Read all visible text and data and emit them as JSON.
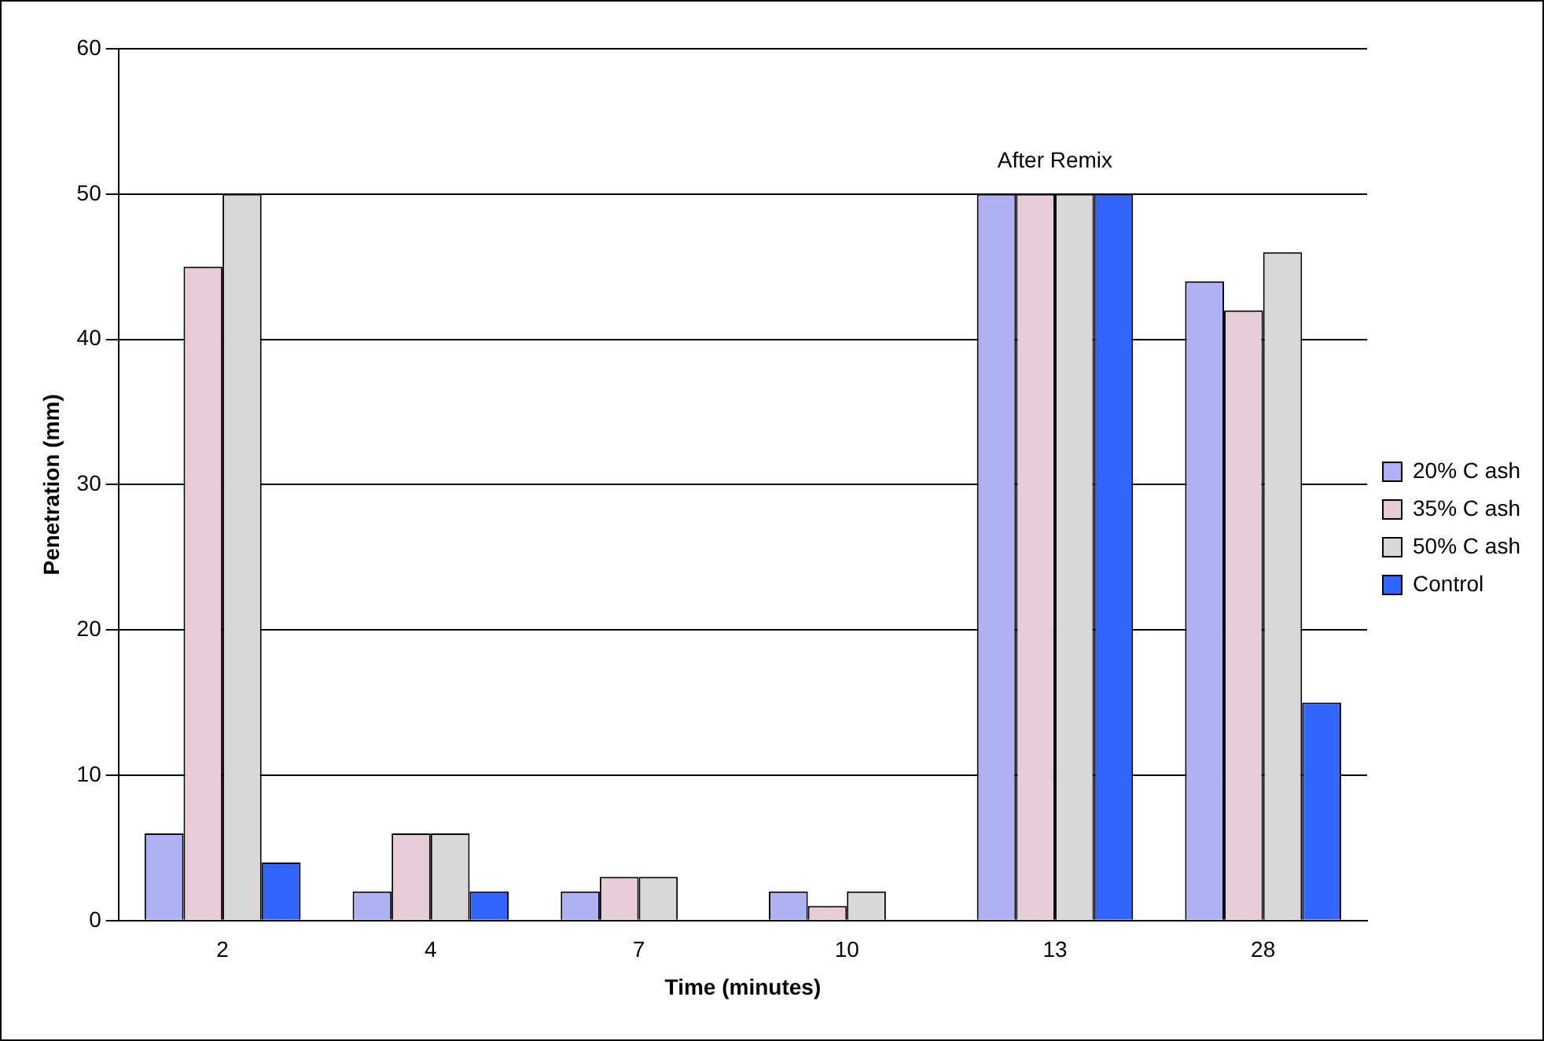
{
  "chart_data": {
    "type": "bar",
    "xlabel": "Time (minutes)",
    "ylabel": "Penetration (mm)",
    "categories": [
      "2",
      "4",
      "7",
      "10",
      "13",
      "28"
    ],
    "series": [
      {
        "name": "20% C ash",
        "color": "#b0b0f4",
        "values": [
          6,
          2,
          2,
          2,
          50,
          44
        ]
      },
      {
        "name": "35% C ash",
        "color": "#e8cbd8",
        "values": [
          45,
          6,
          3,
          1,
          50,
          42
        ]
      },
      {
        "name": "50% C ash",
        "color": "#d8d8d8",
        "values": [
          50,
          6,
          3,
          2,
          50,
          46
        ]
      },
      {
        "name": "Control",
        "color": "#3366ff",
        "values": [
          4,
          2,
          null,
          null,
          50,
          15
        ]
      }
    ],
    "ylim": [
      0,
      60
    ],
    "yticks": [
      0,
      10,
      20,
      30,
      40,
      50,
      60
    ],
    "grid": "y",
    "legend": "right",
    "annotations": [
      {
        "text": "After Remix",
        "x": "13",
        "y": 50
      }
    ]
  }
}
